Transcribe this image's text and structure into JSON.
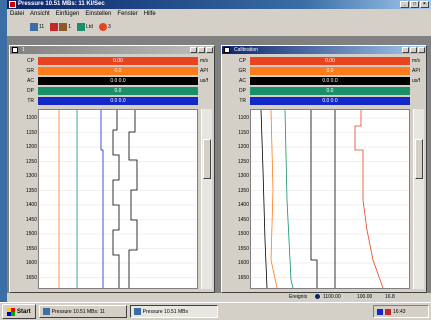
{
  "app": {
    "title": "Pressure 10.51 MBs: 11 Kl/Sec"
  },
  "menu": [
    "Datei",
    "Ansicht",
    "Einfügen",
    "Einstellen",
    "Fenster",
    "Hilfe"
  ],
  "toolbar": {
    "items": [
      {
        "label": "11",
        "icon": "grid-icon"
      },
      {
        "label": "1",
        "icon": "color-icon"
      },
      {
        "label": "Ltd",
        "icon": "chart-icon"
      },
      {
        "label": "3",
        "icon": "print-icon"
      }
    ]
  },
  "windows": [
    {
      "title": "1",
      "header_rows": [
        {
          "label": "CP",
          "value": "0.00",
          "unit": "m/s",
          "color": "#e8441f"
        },
        {
          "label": "GR",
          "value": "0.0",
          "unit": "API",
          "color": "#ff7a1a"
        },
        {
          "label": "AC",
          "value": "0.0 0.0",
          "unit": "us/f",
          "color": "#000000"
        },
        {
          "label": "DP",
          "value": "0.0",
          "unit": "",
          "color": "#1a8f6a"
        },
        {
          "label": "TR",
          "value": "0.0 0.0",
          "unit": "",
          "color": "#1428c8"
        }
      ],
      "depths": [
        "1100",
        "1150",
        "1200",
        "1250",
        "1300",
        "1350",
        "1400",
        "1450",
        "1500",
        "1550",
        "1600",
        "1650"
      ]
    },
    {
      "title": "Calibration",
      "header_rows": [
        {
          "label": "CP",
          "value": "0.00",
          "unit": "m/s",
          "color": "#e8441f"
        },
        {
          "label": "GR",
          "value": "0.0",
          "unit": "API",
          "color": "#ff7a1a"
        },
        {
          "label": "AC",
          "value": "0.0 0.0",
          "unit": "us/f",
          "color": "#000000"
        },
        {
          "label": "DP",
          "value": "0.0",
          "unit": "",
          "color": "#1a8f6a"
        },
        {
          "label": "TR",
          "value": "0.0 0.0",
          "unit": "",
          "color": "#1428c8"
        }
      ],
      "depths": [
        "1100",
        "1150",
        "1200",
        "1250",
        "1300",
        "1350",
        "1400",
        "1450",
        "1500",
        "1550",
        "1600",
        "1650"
      ]
    }
  ],
  "status": {
    "label": "Ereignis",
    "value1": "1100.00",
    "value2": "100.00",
    "page": "16.8"
  },
  "taskbar": {
    "start": "Start",
    "tasks": [
      {
        "label": "Pressure 10.51 MBs: 11"
      },
      {
        "label": "Pressure 10.51 MBs"
      }
    ],
    "clock": "16:43"
  },
  "colors": {
    "track_red": "#e8441f",
    "track_orange": "#ff7a1a",
    "track_green": "#1a8f6a",
    "track_blue": "#1428c8",
    "track_black": "#000000"
  }
}
